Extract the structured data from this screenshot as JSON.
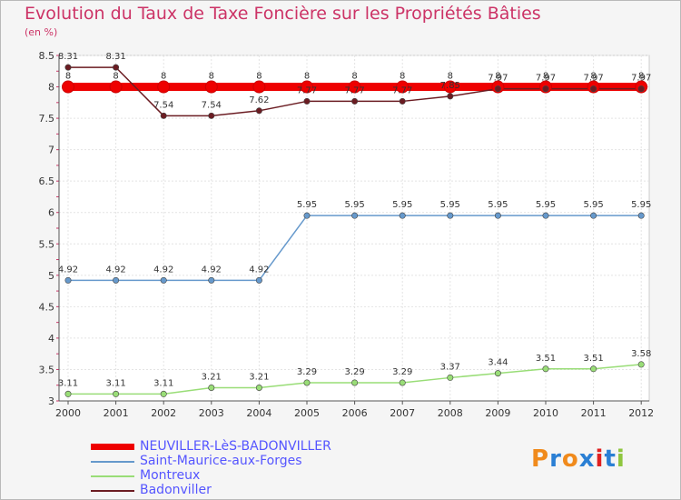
{
  "title": "Evolution du Taux de Taxe Foncière sur les Propriétés Bâties",
  "unit_label": "(en %)",
  "logo": "Proxiti",
  "chart_data": {
    "type": "line",
    "x": [
      "2000",
      "2001",
      "2002",
      "2003",
      "2004",
      "2005",
      "2006",
      "2007",
      "2008",
      "2009",
      "2010",
      "2011",
      "2012"
    ],
    "ylim": [
      3,
      8.5
    ],
    "yticks": [
      "3",
      "3.5",
      "4",
      "4.5",
      "5",
      "5.5",
      "6",
      "6.5",
      "7",
      "7.5",
      "8",
      "8.5"
    ],
    "series": [
      {
        "name": "Badonviller",
        "color": "#6b1c22",
        "values": [
          8.31,
          8.31,
          7.54,
          7.54,
          7.62,
          7.77,
          7.77,
          7.77,
          7.85,
          7.97,
          7.97,
          7.97,
          7.97
        ],
        "labels": [
          "8.31",
          "8.31",
          "7.54",
          "7.54",
          "7.62",
          "7.77",
          "7.77",
          "7.77",
          "7.85",
          "7.97",
          "7.97",
          "7.97",
          "7.97"
        ]
      },
      {
        "name": "NEUVILLER-LèS-BADONVILLER",
        "color": "#ee0000",
        "values": [
          8,
          8,
          8,
          8,
          8,
          8,
          8,
          8,
          8,
          8,
          8,
          8,
          8
        ],
        "labels": [
          "8",
          "8",
          "8",
          "8",
          "8",
          "8",
          "8",
          "8",
          "8",
          "8",
          "8",
          "8",
          "8"
        ]
      },
      {
        "name": "Saint-Maurice-aux-Forges",
        "color": "#6699cc",
        "values": [
          4.92,
          4.92,
          4.92,
          4.92,
          4.92,
          5.95,
          5.95,
          5.95,
          5.95,
          5.95,
          5.95,
          5.95,
          5.95
        ],
        "labels": [
          "4.92",
          "4.92",
          "4.92",
          "4.92",
          "4.92",
          "5.95",
          "5.95",
          "5.95",
          "5.95",
          "5.95",
          "5.95",
          "5.95",
          "5.95"
        ]
      },
      {
        "name": "Montreux",
        "color": "#99dd77",
        "values": [
          3.11,
          3.11,
          3.11,
          3.21,
          3.21,
          3.29,
          3.29,
          3.29,
          3.37,
          3.44,
          3.51,
          3.51,
          3.58
        ],
        "labels": [
          "3.11",
          "3.11",
          "3.11",
          "3.21",
          "3.21",
          "3.29",
          "3.29",
          "3.29",
          "3.37",
          "3.44",
          "3.51",
          "3.51",
          "3.58"
        ]
      }
    ]
  },
  "legend": [
    {
      "label": "NEUVILLER-LèS-BADONVILLER",
      "color": "#ee0000"
    },
    {
      "label": "Saint-Maurice-aux-Forges",
      "color": "#6699cc"
    },
    {
      "label": "Montreux",
      "color": "#99dd77"
    },
    {
      "label": "Badonviller",
      "color": "#6b1c22"
    }
  ]
}
